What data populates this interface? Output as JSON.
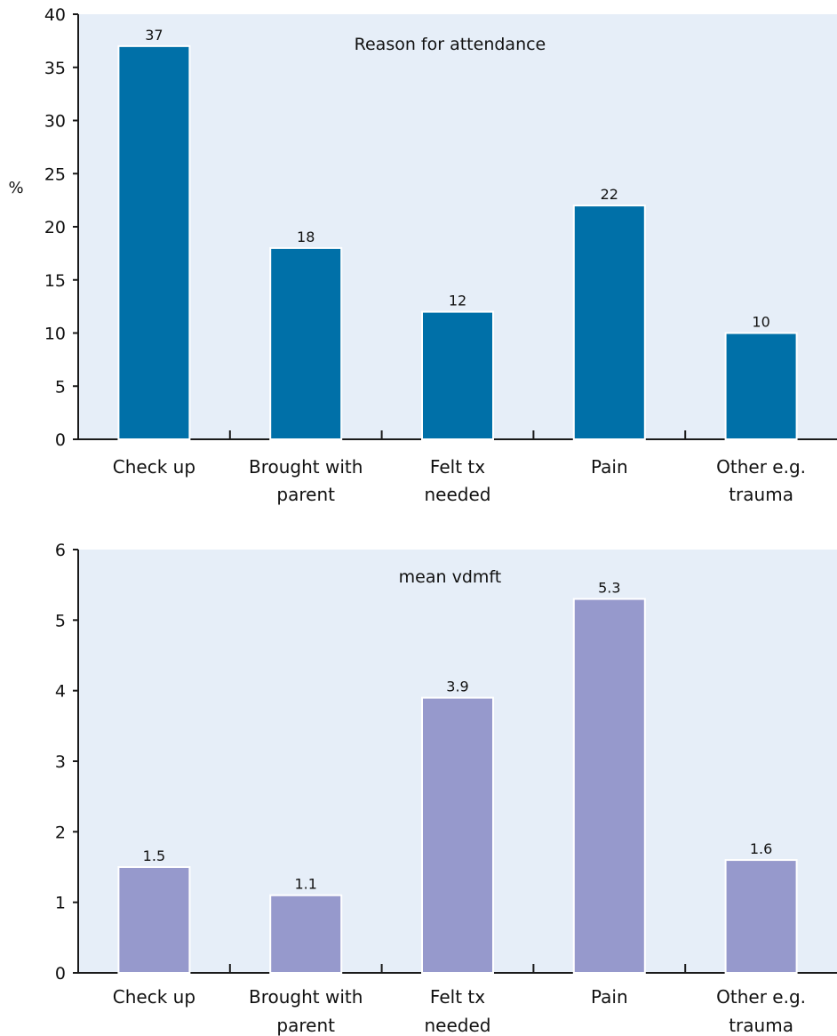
{
  "chart_data": [
    {
      "type": "bar",
      "title": "Reason for attendance",
      "ylabel": "%",
      "xlabel": "",
      "categories": [
        [
          "Check up"
        ],
        [
          "Brought with",
          "parent"
        ],
        [
          "Felt tx",
          "needed"
        ],
        [
          "Pain"
        ],
        [
          "Other e.g.",
          "trauma"
        ]
      ],
      "values": [
        37,
        18,
        12,
        22,
        10
      ],
      "value_labels": [
        "37",
        "18",
        "12",
        "22",
        "10"
      ],
      "ylim": [
        0,
        40
      ],
      "yticks": [
        0,
        5,
        10,
        15,
        20,
        25,
        30,
        35,
        40
      ],
      "grid": false,
      "bar_color": "#0070a8",
      "background_color": "#e6eef8"
    },
    {
      "type": "bar",
      "title": "mean vdmft",
      "ylabel": "",
      "xlabel": "",
      "categories": [
        [
          "Check up"
        ],
        [
          "Brought with",
          "parent"
        ],
        [
          "Felt tx",
          "needed"
        ],
        [
          "Pain"
        ],
        [
          "Other e.g.",
          "trauma"
        ]
      ],
      "values": [
        1.5,
        1.1,
        3.9,
        5.3,
        1.6
      ],
      "value_labels": [
        "1.5",
        "1.1",
        "3.9",
        "5.3",
        "1.6"
      ],
      "ylim": [
        0,
        6
      ],
      "yticks": [
        0,
        1,
        2,
        3,
        4,
        5,
        6
      ],
      "grid": false,
      "bar_color": "#9699cc",
      "background_color": "#e6eef8"
    }
  ]
}
